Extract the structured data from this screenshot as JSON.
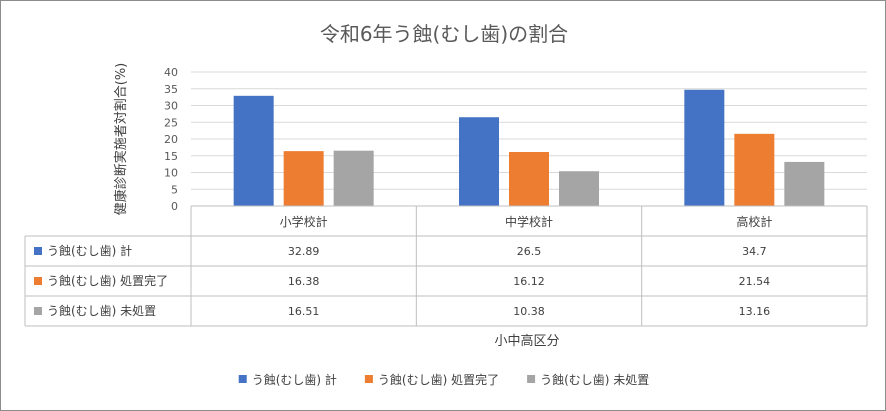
{
  "chart_data": {
    "type": "bar",
    "title": "令和6年う蝕(むし歯)の割合",
    "xlabel": "小中高区分",
    "ylabel": "健康診断実施者対割合(%)",
    "ylim": [
      0,
      40
    ],
    "yticks": [
      0,
      5,
      10,
      15,
      20,
      25,
      30,
      35,
      40
    ],
    "grid": true,
    "legend": "bottom",
    "categories": [
      "小学校計",
      "中学校計",
      "高校計"
    ],
    "series": [
      {
        "name": "う蝕(むし歯) 計",
        "color": "#4472c4",
        "values": [
          32.89,
          26.5,
          34.7
        ],
        "labels": [
          "32.89",
          "26.5",
          "34.7"
        ]
      },
      {
        "name": "う蝕(むし歯) 処置完了",
        "color": "#ed7d31",
        "values": [
          16.38,
          16.12,
          21.54
        ],
        "labels": [
          "16.38",
          "16.12",
          "21.54"
        ]
      },
      {
        "name": "う蝕(むし歯) 未処置",
        "color": "#a5a5a5",
        "values": [
          16.51,
          10.38,
          13.16
        ],
        "labels": [
          "16.51",
          "10.38",
          "13.16"
        ]
      }
    ]
  }
}
